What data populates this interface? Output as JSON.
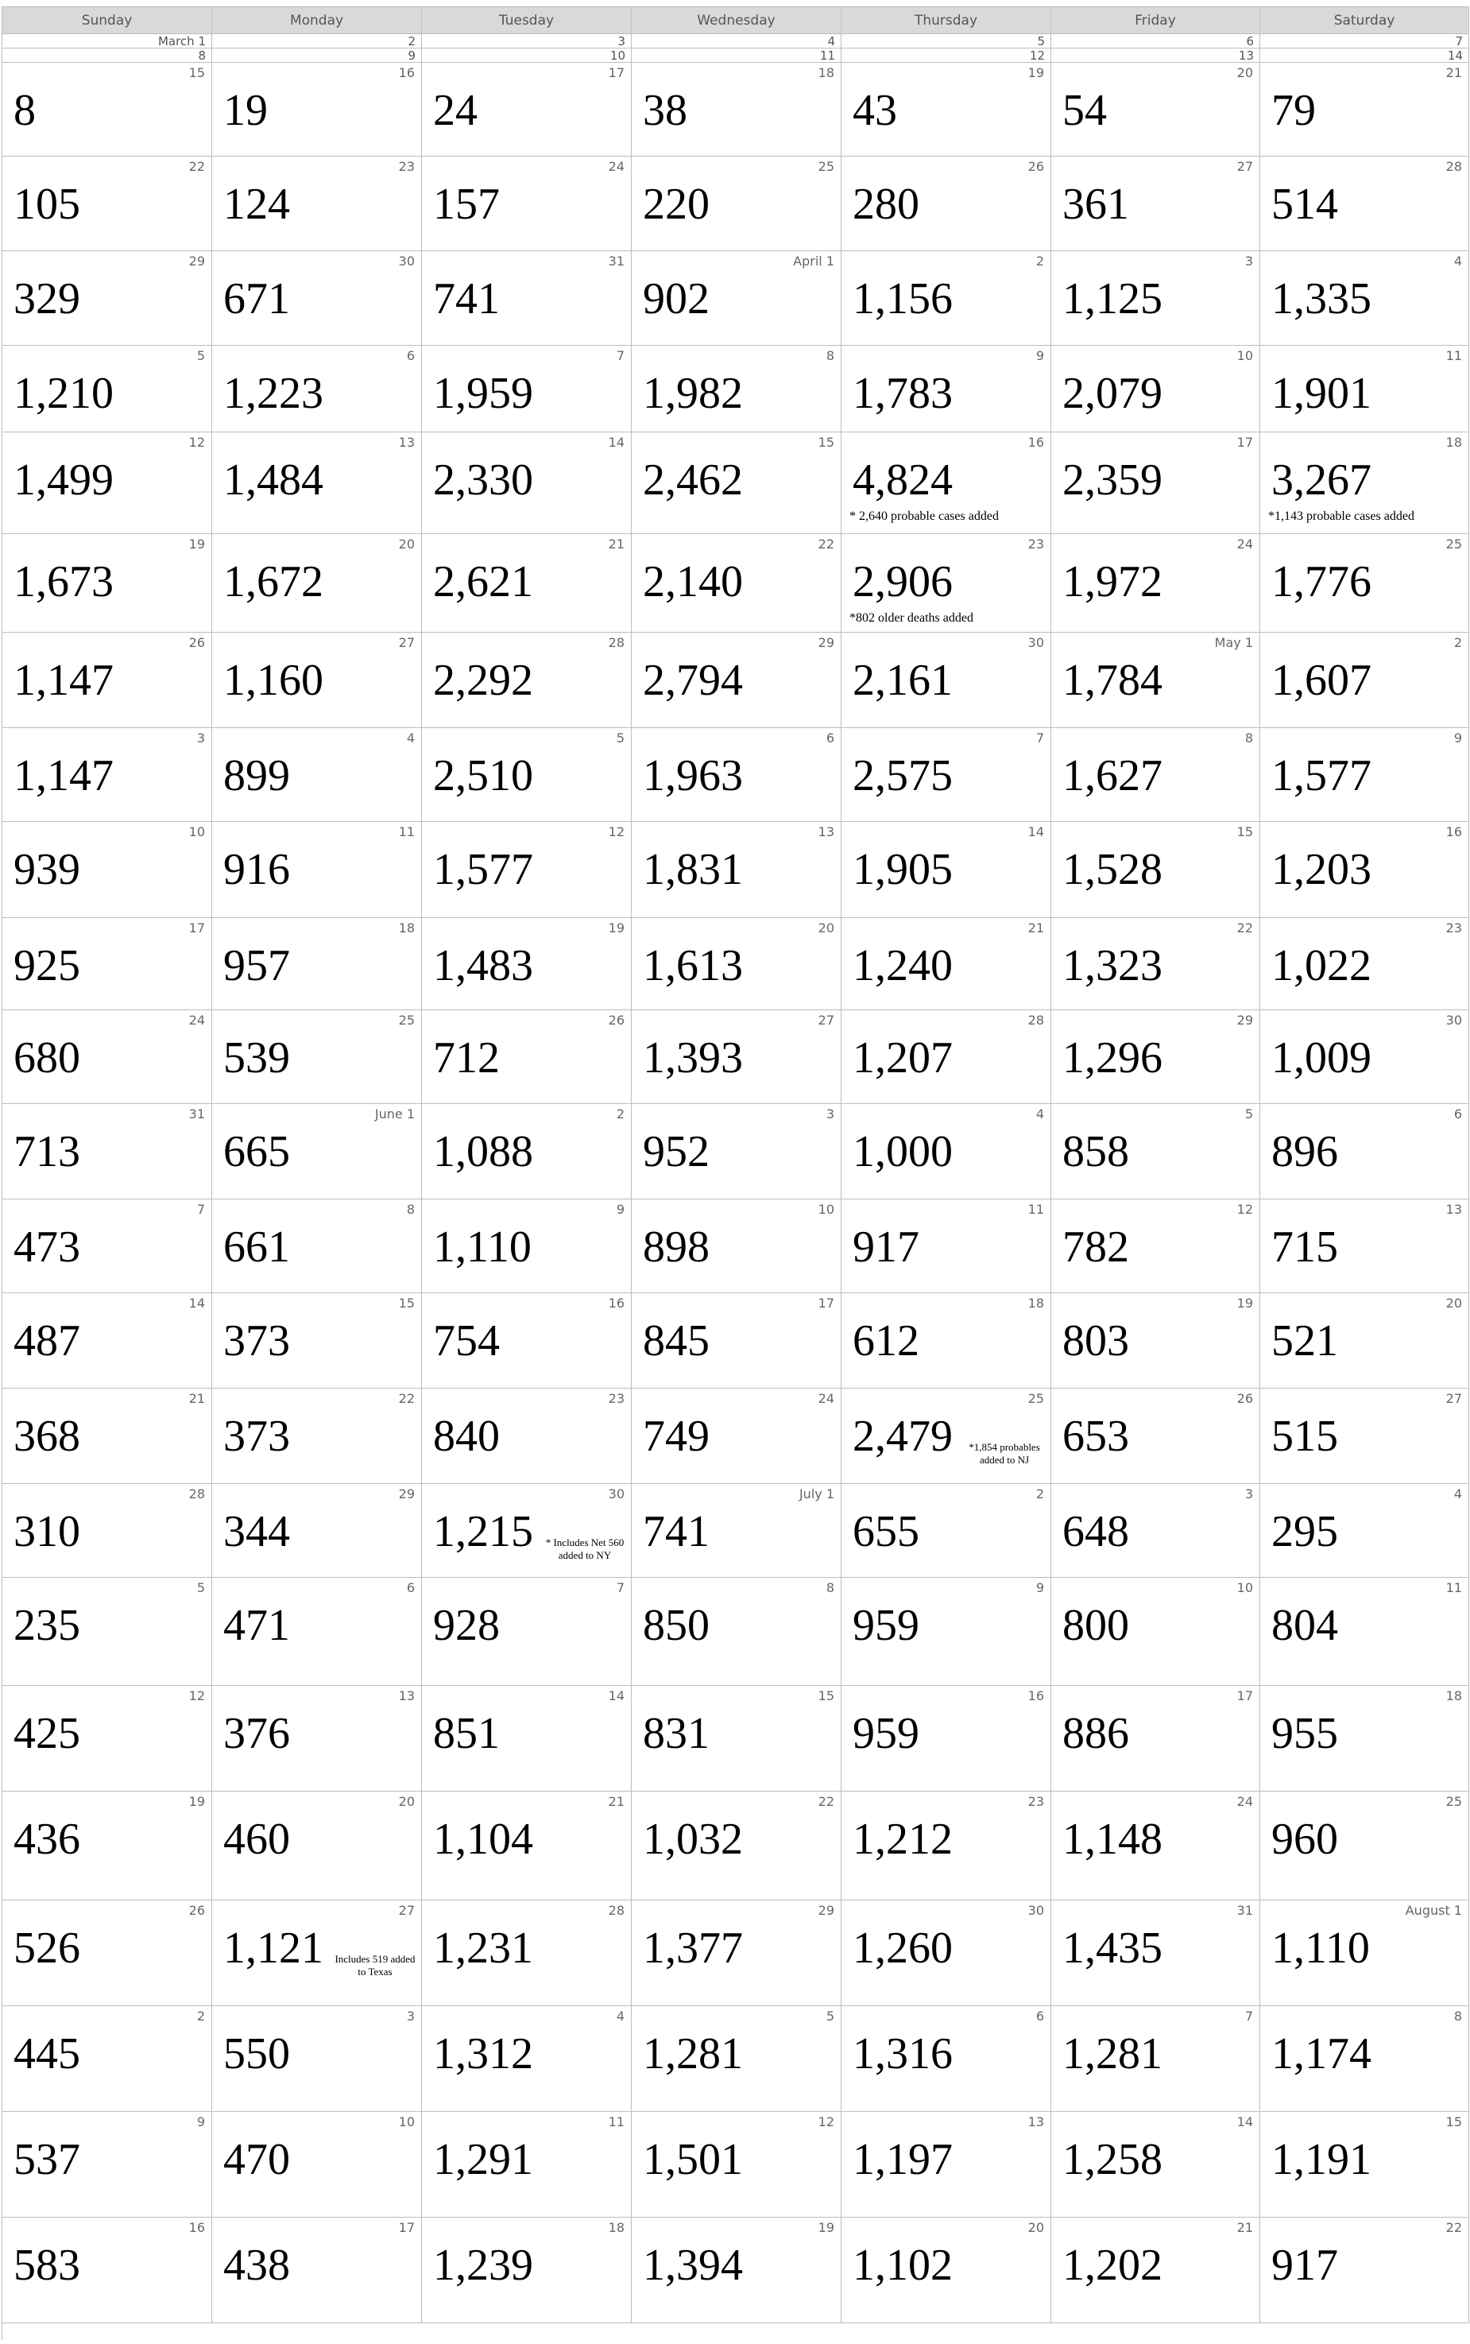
{
  "weekdays": [
    "Sunday",
    "Monday",
    "Tuesday",
    "Wednesday",
    "Thursday",
    "Friday",
    "Saturday"
  ],
  "mini_rows": [
    [
      "March 1",
      "2",
      "3",
      "4",
      "5",
      "6",
      "7"
    ],
    [
      "8",
      "9",
      "10",
      "11",
      "12",
      "13",
      "14"
    ]
  ],
  "weeks": [
    [
      {
        "date": "15",
        "value": "8"
      },
      {
        "date": "16",
        "value": "19"
      },
      {
        "date": "17",
        "value": "24"
      },
      {
        "date": "18",
        "value": "38"
      },
      {
        "date": "19",
        "value": "43"
      },
      {
        "date": "20",
        "value": "54"
      },
      {
        "date": "21",
        "value": "79"
      }
    ],
    [
      {
        "date": "22",
        "value": "105"
      },
      {
        "date": "23",
        "value": "124"
      },
      {
        "date": "24",
        "value": "157"
      },
      {
        "date": "25",
        "value": "220"
      },
      {
        "date": "26",
        "value": "280"
      },
      {
        "date": "27",
        "value": "361"
      },
      {
        "date": "28",
        "value": "514"
      }
    ],
    [
      {
        "date": "29",
        "value": "329"
      },
      {
        "date": "30",
        "value": "671"
      },
      {
        "date": "31",
        "value": "741"
      },
      {
        "date": "April 1",
        "value": "902"
      },
      {
        "date": "2",
        "value": "1,156"
      },
      {
        "date": "3",
        "value": "1,125"
      },
      {
        "date": "4",
        "value": "1,335"
      }
    ],
    [
      {
        "date": "5",
        "value": "1,210"
      },
      {
        "date": "6",
        "value": "1,223"
      },
      {
        "date": "7",
        "value": "1,959"
      },
      {
        "date": "8",
        "value": "1,982"
      },
      {
        "date": "9",
        "value": "1,783"
      },
      {
        "date": "10",
        "value": "2,079"
      },
      {
        "date": "11",
        "value": "1,901"
      }
    ],
    [
      {
        "date": "12",
        "value": "1,499"
      },
      {
        "date": "13",
        "value": "1,484"
      },
      {
        "date": "14",
        "value": "2,330"
      },
      {
        "date": "15",
        "value": "2,462"
      },
      {
        "date": "16",
        "value": "4,824",
        "note": "* 2,640 probable cases added",
        "note_style": "below"
      },
      {
        "date": "17",
        "value": "2,359"
      },
      {
        "date": "18",
        "value": "3,267",
        "note": "*1,143 probable cases added",
        "note_style": "below"
      }
    ],
    [
      {
        "date": "19",
        "value": "1,673"
      },
      {
        "date": "20",
        "value": "1,672"
      },
      {
        "date": "21",
        "value": "2,621"
      },
      {
        "date": "22",
        "value": "2,140"
      },
      {
        "date": "23",
        "value": "2,906",
        "note": "*802 older deaths added",
        "note_style": "below"
      },
      {
        "date": "24",
        "value": "1,972"
      },
      {
        "date": "25",
        "value": "1,776"
      }
    ],
    [
      {
        "date": "26",
        "value": "1,147"
      },
      {
        "date": "27",
        "value": "1,160"
      },
      {
        "date": "28",
        "value": "2,292"
      },
      {
        "date": "29",
        "value": "2,794"
      },
      {
        "date": "30",
        "value": "2,161"
      },
      {
        "date": "May 1",
        "value": "1,784"
      },
      {
        "date": "2",
        "value": "1,607"
      }
    ],
    [
      {
        "date": "3",
        "value": "1,147"
      },
      {
        "date": "4",
        "value": "899"
      },
      {
        "date": "5",
        "value": "2,510"
      },
      {
        "date": "6",
        "value": "1,963"
      },
      {
        "date": "7",
        "value": "2,575"
      },
      {
        "date": "8",
        "value": "1,627"
      },
      {
        "date": "9",
        "value": "1,577"
      }
    ],
    [
      {
        "date": "10",
        "value": "939"
      },
      {
        "date": "11",
        "value": "916"
      },
      {
        "date": "12",
        "value": "1,577"
      },
      {
        "date": "13",
        "value": "1,831"
      },
      {
        "date": "14",
        "value": "1,905"
      },
      {
        "date": "15",
        "value": "1,528"
      },
      {
        "date": "16",
        "value": "1,203"
      }
    ],
    [
      {
        "date": "17",
        "value": "925"
      },
      {
        "date": "18",
        "value": "957"
      },
      {
        "date": "19",
        "value": "1,483"
      },
      {
        "date": "20",
        "value": "1,613"
      },
      {
        "date": "21",
        "value": "1,240"
      },
      {
        "date": "22",
        "value": "1,323"
      },
      {
        "date": "23",
        "value": "1,022"
      }
    ],
    [
      {
        "date": "24",
        "value": "680"
      },
      {
        "date": "25",
        "value": "539"
      },
      {
        "date": "26",
        "value": "712"
      },
      {
        "date": "27",
        "value": "1,393"
      },
      {
        "date": "28",
        "value": "1,207"
      },
      {
        "date": "29",
        "value": "1,296"
      },
      {
        "date": "30",
        "value": "1,009"
      }
    ],
    [
      {
        "date": "31",
        "value": "713"
      },
      {
        "date": "June 1",
        "value": "665"
      },
      {
        "date": "2",
        "value": "1,088"
      },
      {
        "date": "3",
        "value": "952"
      },
      {
        "date": "4",
        "value": "1,000"
      },
      {
        "date": "5",
        "value": "858"
      },
      {
        "date": "6",
        "value": "896"
      }
    ],
    [
      {
        "date": "7",
        "value": "473"
      },
      {
        "date": "8",
        "value": "661"
      },
      {
        "date": "9",
        "value": "1,110"
      },
      {
        "date": "10",
        "value": "898"
      },
      {
        "date": "11",
        "value": "917"
      },
      {
        "date": "12",
        "value": "782"
      },
      {
        "date": "13",
        "value": "715"
      }
    ],
    [
      {
        "date": "14",
        "value": "487"
      },
      {
        "date": "15",
        "value": "373"
      },
      {
        "date": "16",
        "value": "754"
      },
      {
        "date": "17",
        "value": "845"
      },
      {
        "date": "18",
        "value": "612"
      },
      {
        "date": "19",
        "value": "803"
      },
      {
        "date": "20",
        "value": "521"
      }
    ],
    [
      {
        "date": "21",
        "value": "368"
      },
      {
        "date": "22",
        "value": "373"
      },
      {
        "date": "23",
        "value": "840"
      },
      {
        "date": "24",
        "value": "749"
      },
      {
        "date": "25",
        "value": "2,479",
        "note": "*1,854 probables added to NJ",
        "note_style": "small"
      },
      {
        "date": "26",
        "value": "653"
      },
      {
        "date": "27",
        "value": "515"
      }
    ],
    [
      {
        "date": "28",
        "value": "310"
      },
      {
        "date": "29",
        "value": "344"
      },
      {
        "date": "30",
        "value": "1,215",
        "note": "* Includes Net 560 added to NY",
        "note_style": "small"
      },
      {
        "date": "July 1",
        "value": "741"
      },
      {
        "date": "2",
        "value": "655"
      },
      {
        "date": "3",
        "value": "648"
      },
      {
        "date": "4",
        "value": "295"
      }
    ],
    [
      {
        "date": "5",
        "value": "235"
      },
      {
        "date": "6",
        "value": "471"
      },
      {
        "date": "7",
        "value": "928"
      },
      {
        "date": "8",
        "value": "850"
      },
      {
        "date": "9",
        "value": "959"
      },
      {
        "date": "10",
        "value": "800"
      },
      {
        "date": "11",
        "value": "804"
      }
    ],
    [
      {
        "date": "12",
        "value": "425"
      },
      {
        "date": "13",
        "value": "376"
      },
      {
        "date": "14",
        "value": "851"
      },
      {
        "date": "15",
        "value": "831"
      },
      {
        "date": "16",
        "value": "959"
      },
      {
        "date": "17",
        "value": "886"
      },
      {
        "date": "18",
        "value": "955"
      }
    ],
    [
      {
        "date": "19",
        "value": "436"
      },
      {
        "date": "20",
        "value": "460"
      },
      {
        "date": "21",
        "value": "1,104"
      },
      {
        "date": "22",
        "value": "1,032"
      },
      {
        "date": "23",
        "value": "1,212"
      },
      {
        "date": "24",
        "value": "1,148"
      },
      {
        "date": "25",
        "value": "960"
      }
    ],
    [
      {
        "date": "26",
        "value": "526"
      },
      {
        "date": "27",
        "value": "1,121",
        "note": "Includes 519 added to Texas",
        "note_style": "small"
      },
      {
        "date": "28",
        "value": "1,231"
      },
      {
        "date": "29",
        "value": "1,377"
      },
      {
        "date": "30",
        "value": "1,260"
      },
      {
        "date": "31",
        "value": "1,435"
      },
      {
        "date": "August 1",
        "value": "1,110"
      }
    ],
    [
      {
        "date": "2",
        "value": "445"
      },
      {
        "date": "3",
        "value": "550"
      },
      {
        "date": "4",
        "value": "1,312"
      },
      {
        "date": "5",
        "value": "1,281"
      },
      {
        "date": "6",
        "value": "1,316"
      },
      {
        "date": "7",
        "value": "1,281"
      },
      {
        "date": "8",
        "value": "1,174"
      }
    ],
    [
      {
        "date": "9",
        "value": "537"
      },
      {
        "date": "10",
        "value": "470"
      },
      {
        "date": "11",
        "value": "1,291"
      },
      {
        "date": "12",
        "value": "1,501"
      },
      {
        "date": "13",
        "value": "1,197"
      },
      {
        "date": "14",
        "value": "1,258"
      },
      {
        "date": "15",
        "value": "1,191"
      }
    ],
    [
      {
        "date": "16",
        "value": "583"
      },
      {
        "date": "17",
        "value": "438"
      },
      {
        "date": "18",
        "value": "1,239"
      },
      {
        "date": "19",
        "value": "1,394"
      },
      {
        "date": "20",
        "value": "1,102"
      },
      {
        "date": "21",
        "value": "1,202"
      },
      {
        "date": "22",
        "value": "917"
      }
    ]
  ]
}
